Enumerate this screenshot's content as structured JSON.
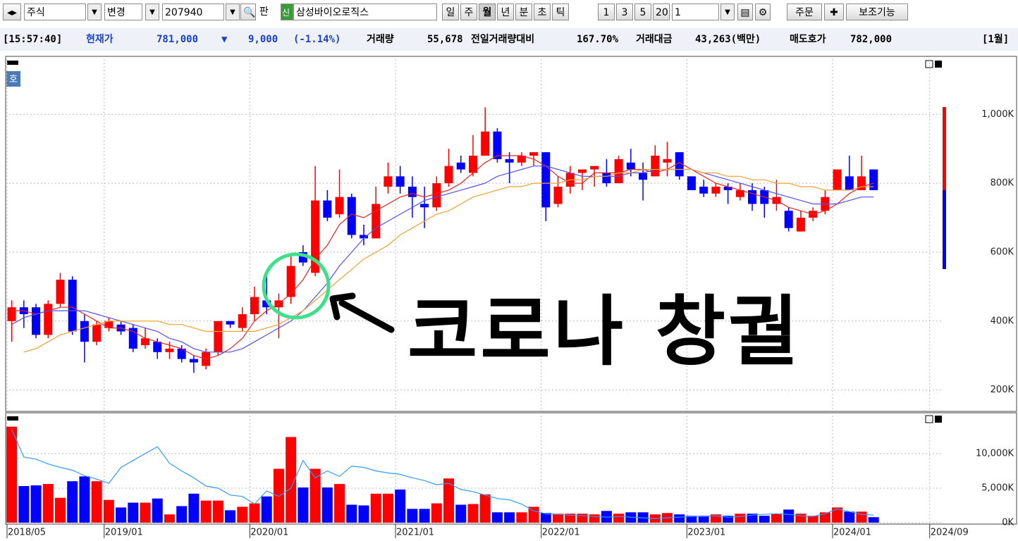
{
  "toolbar": {
    "market": "주식",
    "change": "변경",
    "code": "207940",
    "pan": "판",
    "new": "신",
    "name": "삼성바이오로직스",
    "periods": [
      "일",
      "주",
      "월",
      "년",
      "분",
      "초",
      "틱"
    ],
    "counts": [
      "1",
      "3",
      "5",
      "20"
    ],
    "count_input": "1",
    "order": "주문",
    "aux": "보조기능",
    "quote_button": "호"
  },
  "quote": {
    "time": "[15:57:40]",
    "price_label": "현재가",
    "price": "781,000",
    "direction": "▼",
    "change": "9,000",
    "change_pct": "(-1.14%)",
    "volume_label": "거래량",
    "volume": "55,678",
    "volume_ratio_label": "전일거래량대비",
    "volume_ratio": "167.70%",
    "amount_label": "거래대금",
    "amount": "43,263(백만)",
    "ask_label": "매도호가",
    "ask": "782,000",
    "period": "[1월]"
  },
  "chart_data": [
    {
      "type": "candlestick",
      "annotation": "코로나 창궐",
      "up_color": "#ff0000",
      "down_color": "#0000ff",
      "grid": true,
      "ylim": [
        140,
        1160
      ],
      "yticks": [
        {
          "value": 200,
          "label": "200K"
        },
        {
          "value": 400,
          "label": "400K"
        },
        {
          "value": 600,
          "label": "600K"
        },
        {
          "value": 800,
          "label": "800K"
        },
        {
          "value": 1000,
          "label": "1,000K"
        }
      ],
      "open": [
        400,
        440,
        440,
        360,
        450,
        520,
        400,
        340,
        380,
        390,
        380,
        330,
        340,
        310,
        320,
        290,
        270,
        310,
        400,
        380,
        420,
        460,
        440,
        470,
        600,
        540,
        750,
        710,
        760,
        650,
        640,
        790,
        820,
        790,
        740,
        730,
        800,
        860,
        830,
        880,
        950,
        870,
        860,
        880,
        890,
        740,
        790,
        830,
        840,
        830,
        800,
        860,
        830,
        820,
        860,
        890,
        820,
        790,
        770,
        790,
        760,
        780,
        780,
        740,
        720,
        660,
        700,
        720,
        780,
        820,
        780,
        840,
        null,
        null,
        null,
        null,
        null
      ],
      "high": [
        460,
        460,
        450,
        460,
        540,
        530,
        420,
        400,
        410,
        400,
        390,
        380,
        350,
        340,
        330,
        300,
        320,
        400,
        400,
        440,
        500,
        540,
        480,
        590,
        620,
        850,
        780,
        840,
        770,
        680,
        790,
        860,
        850,
        820,
        790,
        820,
        900,
        880,
        940,
        1020,
        960,
        890,
        890,
        890,
        890,
        820,
        850,
        840,
        850,
        870,
        880,
        900,
        860,
        910,
        920,
        890,
        820,
        810,
        800,
        800,
        800,
        800,
        790,
        810,
        730,
        720,
        730,
        780,
        840,
        880,
        880,
        840,
        null,
        null,
        null,
        null,
        null
      ],
      "low": [
        340,
        380,
        350,
        350,
        440,
        360,
        280,
        330,
        370,
        360,
        310,
        320,
        290,
        290,
        280,
        250,
        260,
        300,
        380,
        370,
        400,
        420,
        350,
        450,
        560,
        530,
        690,
        700,
        640,
        620,
        640,
        770,
        770,
        700,
        670,
        720,
        790,
        830,
        820,
        880,
        860,
        800,
        850,
        850,
        690,
        730,
        770,
        780,
        790,
        790,
        800,
        820,
        750,
        820,
        820,
        810,
        780,
        760,
        760,
        740,
        750,
        720,
        700,
        720,
        660,
        660,
        690,
        710,
        780,
        780,
        780,
        780,
        null,
        null,
        null,
        null,
        null
      ],
      "close": [
        440,
        420,
        360,
        450,
        520,
        370,
        340,
        390,
        400,
        370,
        320,
        350,
        310,
        320,
        290,
        280,
        310,
        400,
        390,
        420,
        470,
        440,
        460,
        560,
        570,
        750,
        700,
        760,
        650,
        640,
        740,
        820,
        790,
        760,
        730,
        800,
        850,
        840,
        880,
        950,
        870,
        860,
        880,
        890,
        730,
        790,
        830,
        840,
        850,
        800,
        870,
        840,
        810,
        880,
        870,
        820,
        780,
        770,
        790,
        780,
        780,
        740,
        740,
        760,
        670,
        700,
        720,
        760,
        840,
        780,
        820,
        780,
        null,
        null,
        null,
        null,
        null
      ],
      "series": [
        {
          "color": "#e8231e",
          "values": [
            430,
            430,
            420,
            430,
            440,
            440,
            420,
            400,
            380,
            380,
            370,
            350,
            340,
            330,
            320,
            300,
            290,
            300,
            320,
            350,
            400,
            430,
            450,
            480,
            520,
            580,
            620,
            680,
            710,
            700,
            720,
            740,
            760,
            770,
            760,
            770,
            780,
            800,
            830,
            860,
            880,
            880,
            880,
            870,
            850,
            820,
            800,
            800,
            830,
            830,
            830,
            840,
            840,
            830,
            840,
            860,
            840,
            820,
            800,
            790,
            780,
            770,
            760,
            750,
            730,
            720,
            710,
            720,
            740,
            770,
            790,
            800,
            null,
            null,
            null,
            null,
            null
          ]
        },
        {
          "color": "#5050f0",
          "values": [
            390,
            410,
            420,
            430,
            430,
            430,
            430,
            420,
            410,
            400,
            390,
            380,
            370,
            350,
            340,
            320,
            310,
            310,
            310,
            320,
            340,
            360,
            380,
            400,
            430,
            470,
            510,
            560,
            600,
            640,
            670,
            690,
            710,
            730,
            750,
            760,
            770,
            780,
            790,
            800,
            820,
            830,
            840,
            850,
            850,
            840,
            830,
            820,
            820,
            820,
            820,
            830,
            830,
            840,
            840,
            840,
            840,
            830,
            820,
            810,
            800,
            790,
            780,
            770,
            760,
            750,
            740,
            740,
            740,
            750,
            760,
            760,
            null,
            null,
            null,
            null,
            null
          ]
        },
        {
          "color": "#f0a030",
          "values": [
            null,
            310,
            320,
            340,
            360,
            370,
            380,
            390,
            400,
            400,
            400,
            400,
            400,
            390,
            390,
            380,
            370,
            370,
            370,
            370,
            370,
            380,
            390,
            410,
            430,
            460,
            490,
            520,
            550,
            580,
            600,
            620,
            650,
            670,
            690,
            710,
            720,
            740,
            760,
            770,
            780,
            790,
            790,
            800,
            800,
            800,
            810,
            810,
            820,
            820,
            830,
            830,
            840,
            840,
            840,
            840,
            840,
            830,
            830,
            820,
            820,
            810,
            810,
            800,
            800,
            790,
            790,
            780,
            780,
            780,
            790,
            790,
            null,
            null,
            null,
            null,
            null
          ]
        }
      ]
    },
    {
      "type": "bar",
      "up_color": "#ff0000",
      "down_color": "#0000ff",
      "grid": true,
      "categories": [
        "2018/05",
        null,
        null,
        null,
        null,
        null,
        null,
        null,
        "2019/01",
        null,
        null,
        null,
        null,
        null,
        null,
        null,
        null,
        null,
        null,
        null,
        "2020/01",
        null,
        null,
        null,
        null,
        null,
        null,
        null,
        null,
        null,
        null,
        null,
        "2021/01",
        null,
        null,
        null,
        null,
        null,
        null,
        null,
        null,
        null,
        null,
        null,
        "2022/01",
        null,
        null,
        null,
        null,
        null,
        null,
        null,
        null,
        null,
        null,
        null,
        "2023/01",
        null,
        null,
        null,
        null,
        null,
        null,
        null,
        null,
        null,
        null,
        null,
        "2024/01",
        null,
        null,
        null,
        null,
        null,
        null,
        null,
        "2024/09"
      ],
      "ylim": [
        0,
        15500
      ],
      "yticks": [
        {
          "value": 0,
          "label": "0K"
        },
        {
          "value": 5000,
          "label": "5,000K"
        },
        {
          "value": 10000,
          "label": "10,000K"
        }
      ],
      "values": [
        13900,
        5300,
        5400,
        5600,
        3600,
        6000,
        6700,
        6000,
        3300,
        2200,
        2900,
        2900,
        3500,
        1200,
        2400,
        4200,
        3200,
        3200,
        1800,
        2300,
        2800,
        3800,
        7800,
        12400,
        5100,
        7800,
        5100,
        5600,
        2600,
        2500,
        4200,
        4200,
        4800,
        2000,
        2000,
        2800,
        6400,
        2600,
        2700,
        4100,
        1500,
        1500,
        1500,
        2300,
        1400,
        1300,
        1300,
        1300,
        1200,
        1700,
        1300,
        1500,
        1500,
        1200,
        1400,
        1200,
        1000,
        1000,
        1200,
        1000,
        1300,
        1300,
        1000,
        1300,
        1900,
        1300,
        1000,
        1500,
        2200,
        1600,
        1600,
        800,
        null,
        null,
        null,
        null,
        null
      ],
      "series": [
        {
          "color": "#3399ff",
          "values": [
            13500,
            9500,
            9200,
            8500,
            8000,
            7600,
            6800,
            6300,
            5700,
            8000,
            9000,
            10000,
            11000,
            8600,
            7500,
            6500,
            5300,
            5000,
            4000,
            3800,
            2700,
            4600,
            3800,
            5000,
            9000,
            6500,
            7500,
            6700,
            8200,
            8000,
            7500,
            7200,
            7000,
            6500,
            6100,
            5500,
            5700,
            4800,
            4500,
            4000,
            3500,
            3300,
            2700,
            1700,
            1300,
            1200,
            1100,
            1000,
            900,
            800,
            900,
            800,
            700,
            600,
            700,
            800,
            900,
            900,
            1000,
            800,
            900,
            1100,
            1200,
            1300,
            1200,
            1000,
            900,
            1300,
            2000,
            1600,
            1200,
            1100,
            null,
            null,
            null,
            null,
            null
          ]
        }
      ]
    }
  ]
}
